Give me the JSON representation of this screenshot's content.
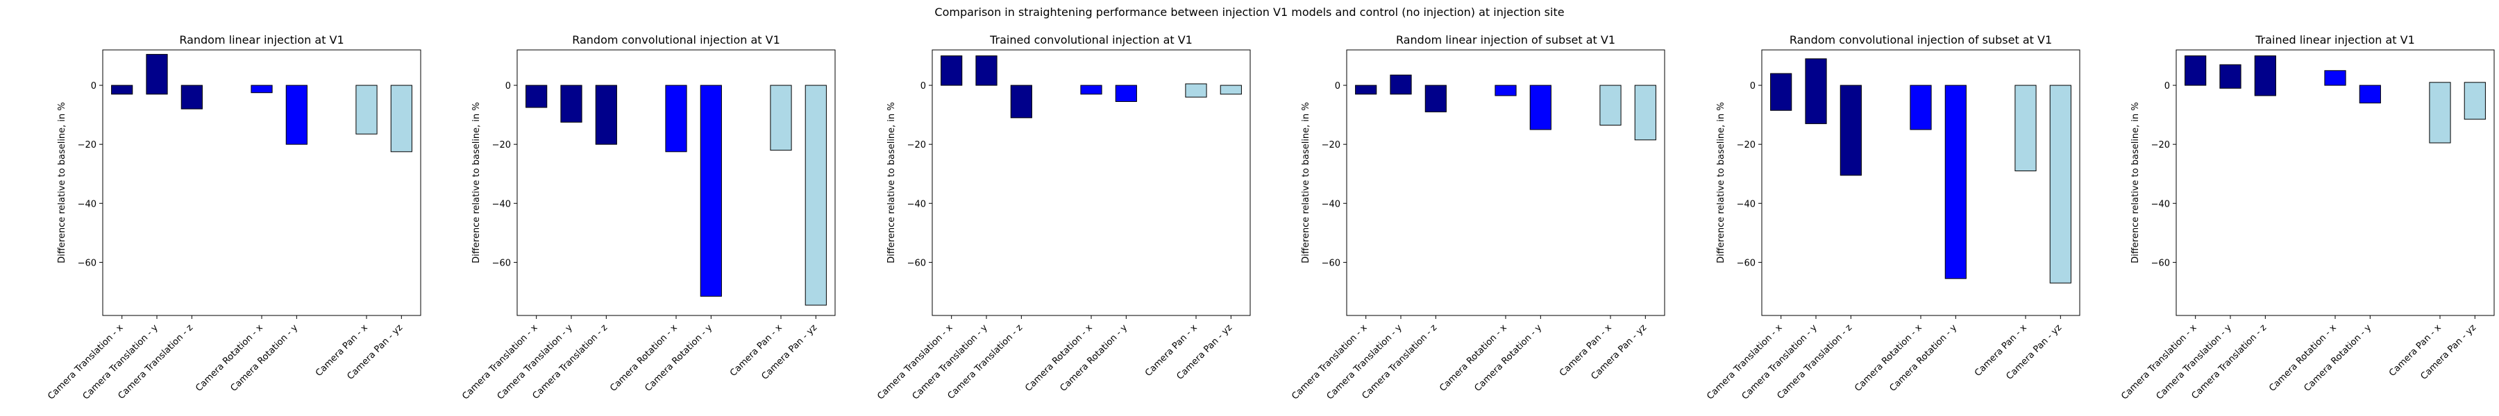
{
  "figure": {
    "suptitle": "Comparison in straightening performance between injection V1 models and control (no injection) at injection site"
  },
  "colors": {
    "translation": "#00008b",
    "rotation": "#0000ff",
    "pan": "#add8e6",
    "edge": "#000000"
  },
  "chart_data": [
    {
      "type": "bar",
      "title": "Random linear injection at V1",
      "ylabel": "Difference relative to baseline, in %",
      "ylim": [
        -78,
        12
      ],
      "yticks": [
        0,
        -20,
        -40,
        -60
      ],
      "grid": false,
      "categories": [
        "Camera Translation - x",
        "Camera Translation - y",
        "Camera Translation - z",
        "Camera Rotation - x",
        "Camera Rotation - y",
        "Camera Pan - x",
        "Camera Pan - yz"
      ],
      "values": [
        [
          -3,
          0
        ],
        [
          -3,
          10.5
        ],
        [
          -8,
          0
        ],
        [
          -2.5,
          0
        ],
        [
          -20,
          0
        ],
        [
          -16.5,
          0
        ],
        [
          -22.5,
          0
        ]
      ]
    },
    {
      "type": "bar",
      "title": "Random convolutional injection at V1",
      "ylabel": "Difference relative to baseline, in %",
      "ylim": [
        -78,
        12
      ],
      "yticks": [
        0,
        -20,
        -40,
        -60
      ],
      "grid": false,
      "categories": [
        "Camera Translation - x",
        "Camera Translation - y",
        "Camera Translation - z",
        "Camera Rotation - x",
        "Camera Rotation - y",
        "Camera Pan - x",
        "Camera Pan - yz"
      ],
      "values": [
        [
          -7.5,
          0
        ],
        [
          -12.5,
          0
        ],
        [
          -20,
          0
        ],
        [
          -22.5,
          0
        ],
        [
          -71.5,
          0
        ],
        [
          -22,
          0
        ],
        [
          -74.5,
          0
        ]
      ]
    },
    {
      "type": "bar",
      "title": "Trained convolutional injection at V1",
      "ylabel": "Difference relative to baseline, in %",
      "ylim": [
        -78,
        12
      ],
      "yticks": [
        0,
        -20,
        -40,
        -60
      ],
      "grid": false,
      "categories": [
        "Camera Translation - x",
        "Camera Translation - y",
        "Camera Translation - z",
        "Camera Rotation - x",
        "Camera Rotation - y",
        "Camera Pan - x",
        "Camera Pan - yz"
      ],
      "values": [
        [
          0,
          10
        ],
        [
          0,
          10
        ],
        [
          -11,
          0
        ],
        [
          -3,
          0
        ],
        [
          -5.5,
          0
        ],
        [
          -4,
          0.5
        ],
        [
          -3,
          0
        ]
      ]
    },
    {
      "type": "bar",
      "title": "Random linear injection of subset at V1",
      "ylabel": "Difference relative to baseline, in %",
      "ylim": [
        -78,
        12
      ],
      "yticks": [
        0,
        -20,
        -40,
        -60
      ],
      "grid": false,
      "categories": [
        "Camera Translation - x",
        "Camera Translation - y",
        "Camera Translation - z",
        "Camera Rotation - x",
        "Camera Rotation - y",
        "Camera Pan - x",
        "Camera Pan - yz"
      ],
      "values": [
        [
          -3,
          0
        ],
        [
          -3,
          3.5
        ],
        [
          -9,
          0
        ],
        [
          -3.5,
          0
        ],
        [
          -15,
          0
        ],
        [
          -13.5,
          0
        ],
        [
          -18.5,
          0
        ]
      ]
    },
    {
      "type": "bar",
      "title": "Random convolutional injection of subset at V1",
      "ylabel": "Difference relative to baseline, in %",
      "ylim": [
        -78,
        12
      ],
      "yticks": [
        0,
        -20,
        -40,
        -60
      ],
      "grid": false,
      "categories": [
        "Camera Translation - x",
        "Camera Translation - y",
        "Camera Translation - z",
        "Camera Rotation - x",
        "Camera Rotation - y",
        "Camera Pan - x",
        "Camera Pan - yz"
      ],
      "values": [
        [
          -8.5,
          4
        ],
        [
          -13,
          9
        ],
        [
          -30.5,
          0
        ],
        [
          -15,
          0
        ],
        [
          -65.5,
          0
        ],
        [
          -29,
          0
        ],
        [
          -67,
          0
        ]
      ]
    },
    {
      "type": "bar",
      "title": "Trained linear injection at V1",
      "ylabel": "Difference relative to baseline, in %",
      "ylim": [
        -78,
        12
      ],
      "yticks": [
        0,
        -20,
        -40,
        -60
      ],
      "grid": false,
      "categories": [
        "Camera Translation - x",
        "Camera Translation - y",
        "Camera Translation - z",
        "Camera Rotation - x",
        "Camera Rotation - y",
        "Camera Pan - x",
        "Camera Pan - yz"
      ],
      "values": [
        [
          0,
          10
        ],
        [
          -1,
          7
        ],
        [
          -3.5,
          10
        ],
        [
          0,
          5
        ],
        [
          -6,
          0
        ],
        [
          -19.5,
          1
        ],
        [
          -11.5,
          1
        ]
      ]
    }
  ]
}
